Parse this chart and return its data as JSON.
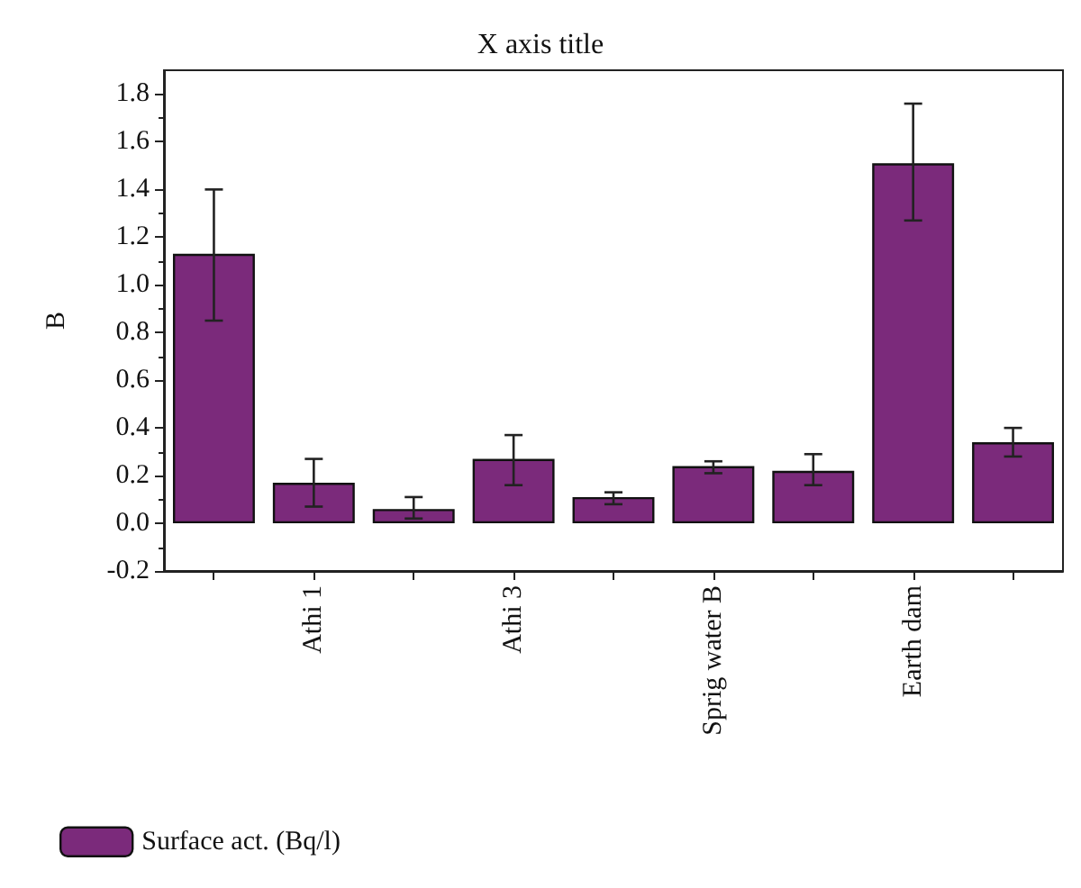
{
  "chart_data": {
    "type": "bar",
    "title": "X axis title",
    "ylabel": "B",
    "categories": [
      null,
      "Athi 1",
      null,
      "Athi 3",
      null,
      "Sprig water B",
      null,
      "Earth dam",
      null
    ],
    "series": [
      {
        "name": "Surface act. (Bq/l)",
        "color": "#7b2a7b",
        "values": [
          1.13,
          0.17,
          0.06,
          0.27,
          0.11,
          0.24,
          0.22,
          1.51,
          0.34
        ],
        "errors": [
          [
            0.85,
            1.4
          ],
          [
            0.07,
            0.27
          ],
          [
            0.02,
            0.11
          ],
          [
            0.16,
            0.37
          ],
          [
            0.08,
            0.13
          ],
          [
            0.21,
            0.26
          ],
          [
            0.16,
            0.29
          ],
          [
            1.27,
            1.76
          ],
          [
            0.28,
            0.4
          ]
        ]
      }
    ],
    "ylim": [
      -0.2,
      1.9
    ],
    "yticks": [
      -0.2,
      {
        "value": 0,
        "label": "0.0"
      },
      0.2,
      0.4,
      0.6,
      0.8,
      {
        "value": 1,
        "label": "1.0"
      },
      1.2,
      1.4,
      1.6,
      1.8
    ],
    "grid": false,
    "legend": "bottom left"
  }
}
